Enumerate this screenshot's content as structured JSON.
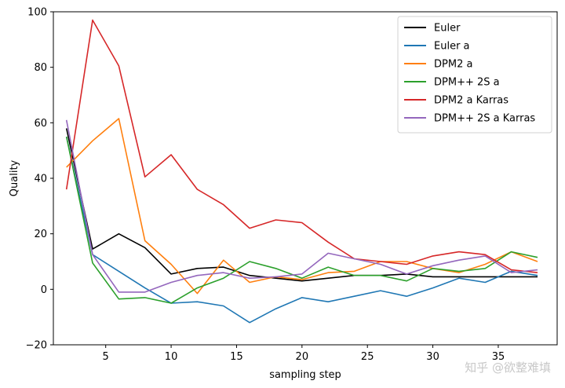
{
  "chart_data": {
    "type": "line",
    "xlabel": "sampling step",
    "ylabel": "Quality",
    "xlim": [
      1,
      39.5
    ],
    "ylim": [
      -20,
      100
    ],
    "xticks": [
      5,
      10,
      15,
      20,
      25,
      30,
      35
    ],
    "yticks": [
      -20,
      0,
      20,
      40,
      60,
      80,
      100
    ],
    "legend_position": "top-right",
    "x": [
      2,
      4,
      6,
      8,
      10,
      12,
      14,
      16,
      18,
      20,
      22,
      24,
      26,
      28,
      30,
      32,
      34,
      36,
      38
    ],
    "series": [
      {
        "name": "Euler",
        "color": "#000000",
        "values": [
          58,
          14.5,
          20,
          15,
          5.5,
          7.5,
          8,
          5,
          4,
          3,
          4,
          5,
          5,
          5.5,
          4.5,
          4.5,
          4.5,
          4.5,
          4.5
        ]
      },
      {
        "name": "Euler a",
        "color": "#1f77b4",
        "values": [
          55,
          12.5,
          6.5,
          0.5,
          -5,
          -4.5,
          -6,
          -12,
          -7,
          -3,
          -4.5,
          -2.5,
          -0.5,
          -2.5,
          0.5,
          4,
          2.5,
          6.5,
          5
        ]
      },
      {
        "name": "DPM2 a",
        "color": "#ff7f0e",
        "values": [
          44,
          53.5,
          61.5,
          17.5,
          9,
          -1.5,
          10.5,
          2.5,
          4.5,
          3.5,
          6,
          6.5,
          10,
          10,
          7.5,
          6,
          9,
          13.5,
          10
        ]
      },
      {
        "name": "DPM++ 2S a",
        "color": "#2ca02c",
        "values": [
          55,
          9.5,
          -3.5,
          -3,
          -5,
          0.5,
          4,
          10,
          7.5,
          4,
          8,
          5,
          5,
          3,
          7.5,
          6.5,
          7.5,
          13.5,
          11.5
        ]
      },
      {
        "name": "DPM2 a Karras",
        "color": "#d62728",
        "values": [
          36,
          97,
          80.5,
          40.5,
          48.5,
          36,
          30.5,
          22,
          25,
          24,
          17,
          11,
          10,
          9,
          12,
          13.5,
          12.5,
          7,
          6
        ]
      },
      {
        "name": "DPM++ 2S a Karras",
        "color": "#9467bd",
        "values": [
          61,
          12.5,
          -1,
          -1,
          2.5,
          5,
          6,
          4,
          4.5,
          5.5,
          13,
          11,
          9,
          5.5,
          8.5,
          10.5,
          12,
          6,
          7
        ]
      }
    ]
  },
  "watermark": "知乎 @欲整难填"
}
